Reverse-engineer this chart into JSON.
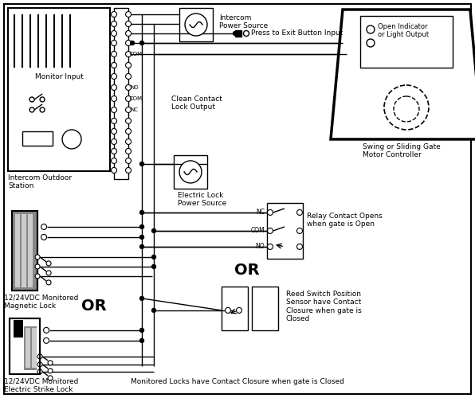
{
  "bg_color": "#ffffff",
  "line_color": "#000000",
  "labels": {
    "monitor_input": "Monitor Input",
    "intercom_outdoor": "Intercom Outdoor\nStation",
    "intercom_ps": "Intercom\nPower Source",
    "press_exit": "Press to Exit Button Input",
    "clean_contact": "Clean Contact\nLock Output",
    "electric_lock_ps": "Electric Lock\nPower Source",
    "magnetic_lock": "12/24VDC Monitored\nMagnetic Lock",
    "electric_strike": "12/24VDC Monitored\nElectric Strike Lock",
    "motor_controller": "Swing or Sliding Gate\nMotor Controller",
    "open_indicator": "Open Indicator\nor Light Output",
    "relay_contact": "Relay Contact Opens\nwhen gate is Open",
    "reed_switch": "Reed Switch Position\nSensor have Contact\nClosure when gate is\nClosed",
    "or1": "OR",
    "or2": "OR",
    "footer": "Monitored Locks have Contact Closure when gate is Closed",
    "com": "COM",
    "no": "NO",
    "nc": "NC"
  }
}
